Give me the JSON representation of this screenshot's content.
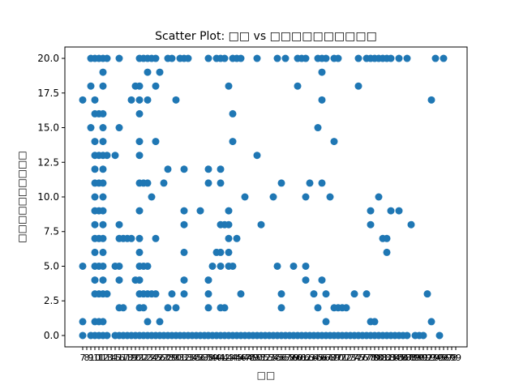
{
  "chart_data": {
    "type": "scatter",
    "title": "Scatter Plot: □□ vs □□□□□□□□□□",
    "xlabel": "□□",
    "ylabel": "□□□□□□□□□□",
    "ylim": [
      -0.82,
      20.82
    ],
    "yticks": [
      0,
      2.5,
      5,
      7.5,
      10,
      12.5,
      15,
      17.5,
      20
    ],
    "ytick_labels": [
      "0.0",
      "2.5",
      "5.0",
      "7.5",
      "10.0",
      "12.5",
      "15.0",
      "17.5",
      "20.0"
    ],
    "x_categories": [
      "7",
      "8",
      "9",
      "10",
      "11",
      "12",
      "13",
      "14",
      "15",
      "16",
      "17",
      "18",
      "19",
      "20",
      "21",
      "22",
      "23",
      "24",
      "25",
      "26",
      "27",
      "28",
      "29",
      "30",
      "31",
      "32",
      "33",
      "34",
      "35",
      "36",
      "37",
      "38",
      "39",
      "40",
      "41",
      "42",
      "43",
      "44",
      "45",
      "46",
      "47",
      "48",
      "49",
      "50",
      "51",
      "52",
      "53",
      "54",
      "55",
      "56",
      "57",
      "58",
      "59",
      "60",
      "61",
      "62",
      "63",
      "64",
      "65",
      "66",
      "67",
      "68",
      "69",
      "70",
      "71",
      "72",
      "73",
      "74",
      "75",
      "76",
      "77",
      "78",
      "79",
      "80",
      "81",
      "82",
      "83",
      "84",
      "85",
      "86",
      "87",
      "88",
      "89",
      "90",
      "91",
      "92",
      "93",
      "94",
      "95",
      "96",
      "97",
      "98",
      "99",
      "100",
      "101",
      "102",
      "103",
      "104",
      "105",
      "106",
      "107",
      "108",
      "109",
      "110",
      "111",
      "112",
      "113",
      "114",
      "115",
      "116",
      "117",
      "118",
      "119",
      "120",
      "121",
      "122",
      "123",
      "124",
      "125",
      "126",
      "127",
      "128",
      "129",
      "130",
      "131",
      "132",
      "133",
      "134",
      "135",
      "136",
      "137",
      "138",
      "139",
      "140",
      "141",
      "142",
      "143",
      "144",
      "145",
      "146",
      "147",
      "148",
      "149",
      "150",
      "151",
      "152",
      "153",
      "154",
      "155",
      "156",
      "157",
      "158",
      "159",
      "160",
      "161",
      "162",
      "163",
      "164",
      "165",
      "166",
      "167",
      "168",
      "169",
      "170",
      "171",
      "172",
      "173",
      "174",
      "175",
      "176",
      "177",
      "178",
      "179",
      "180",
      "181",
      "182",
      "183",
      "184",
      "185",
      "186",
      "187",
      "188",
      "189",
      "190",
      "191",
      "192",
      "193",
      "194",
      "195",
      "196",
      "197",
      "198",
      "199",
      "200",
      "201",
      "202",
      "203",
      "204",
      "205",
      "206",
      "207",
      "208",
      "209",
      "210",
      "211",
      "212",
      "213",
      "214",
      "215",
      "216",
      "217",
      "218",
      "219",
      "220",
      "221",
      "222",
      "223",
      "224",
      "225"
    ],
    "points": [
      [
        0,
        17
      ],
      [
        0,
        5
      ],
      [
        0,
        1
      ],
      [
        0,
        0
      ],
      [
        2,
        20
      ],
      [
        2,
        18
      ],
      [
        2,
        15
      ],
      [
        2,
        0
      ],
      [
        3,
        20
      ],
      [
        3,
        17
      ],
      [
        3,
        16
      ],
      [
        3,
        14
      ],
      [
        3,
        13
      ],
      [
        3,
        12
      ],
      [
        3,
        11
      ],
      [
        3,
        10
      ],
      [
        3,
        9
      ],
      [
        3,
        8
      ],
      [
        3,
        7
      ],
      [
        3,
        6
      ],
      [
        3,
        5
      ],
      [
        3,
        4
      ],
      [
        3,
        3
      ],
      [
        3,
        1
      ],
      [
        3,
        0
      ],
      [
        4,
        20
      ],
      [
        4,
        16
      ],
      [
        4,
        13
      ],
      [
        4,
        11
      ],
      [
        4,
        9
      ],
      [
        4,
        7
      ],
      [
        4,
        5
      ],
      [
        4,
        3
      ],
      [
        4,
        1
      ],
      [
        4,
        0
      ],
      [
        5,
        20
      ],
      [
        5,
        19
      ],
      [
        5,
        18
      ],
      [
        5,
        16
      ],
      [
        5,
        15
      ],
      [
        5,
        14
      ],
      [
        5,
        13
      ],
      [
        5,
        12
      ],
      [
        5,
        11
      ],
      [
        5,
        10
      ],
      [
        5,
        9
      ],
      [
        5,
        8
      ],
      [
        5,
        7
      ],
      [
        5,
        6
      ],
      [
        5,
        5
      ],
      [
        5,
        4
      ],
      [
        5,
        3
      ],
      [
        5,
        1
      ],
      [
        5,
        0
      ],
      [
        6,
        20
      ],
      [
        6,
        13
      ],
      [
        6,
        3
      ],
      [
        6,
        0
      ],
      [
        8,
        13
      ],
      [
        8,
        5
      ],
      [
        8,
        0
      ],
      [
        9,
        20
      ],
      [
        9,
        15
      ],
      [
        9,
        8
      ],
      [
        9,
        7
      ],
      [
        9,
        5
      ],
      [
        9,
        4
      ],
      [
        9,
        2
      ],
      [
        9,
        0
      ],
      [
        10,
        7
      ],
      [
        10,
        2
      ],
      [
        10,
        0
      ],
      [
        11,
        7
      ],
      [
        11,
        0
      ],
      [
        12,
        17
      ],
      [
        12,
        7
      ],
      [
        12,
        0
      ],
      [
        13,
        18
      ],
      [
        13,
        4
      ],
      [
        13,
        0
      ],
      [
        14,
        20
      ],
      [
        14,
        18
      ],
      [
        14,
        17
      ],
      [
        14,
        16
      ],
      [
        14,
        14
      ],
      [
        14,
        13
      ],
      [
        14,
        11
      ],
      [
        14,
        9
      ],
      [
        14,
        7
      ],
      [
        14,
        6
      ],
      [
        14,
        5
      ],
      [
        14,
        4
      ],
      [
        14,
        3
      ],
      [
        14,
        2
      ],
      [
        14,
        0
      ],
      [
        15,
        20
      ],
      [
        15,
        11
      ],
      [
        15,
        5
      ],
      [
        15,
        3
      ],
      [
        15,
        2
      ],
      [
        15,
        0
      ],
      [
        16,
        20
      ],
      [
        16,
        19
      ],
      [
        16,
        17
      ],
      [
        16,
        11
      ],
      [
        16,
        5
      ],
      [
        16,
        3
      ],
      [
        16,
        1
      ],
      [
        16,
        0
      ],
      [
        17,
        20
      ],
      [
        17,
        10
      ],
      [
        17,
        3
      ],
      [
        17,
        0
      ],
      [
        18,
        20
      ],
      [
        18,
        18
      ],
      [
        18,
        14
      ],
      [
        18,
        7
      ],
      [
        18,
        3
      ],
      [
        18,
        0
      ],
      [
        19,
        19
      ],
      [
        19,
        1
      ],
      [
        19,
        0
      ],
      [
        20,
        11
      ],
      [
        20,
        0
      ],
      [
        21,
        20
      ],
      [
        21,
        12
      ],
      [
        21,
        2
      ],
      [
        21,
        0
      ],
      [
        22,
        20
      ],
      [
        22,
        3
      ],
      [
        22,
        0
      ],
      [
        23,
        17
      ],
      [
        23,
        2
      ],
      [
        23,
        0
      ],
      [
        24,
        20
      ],
      [
        24,
        0
      ],
      [
        25,
        20
      ],
      [
        25,
        12
      ],
      [
        25,
        9
      ],
      [
        25,
        8
      ],
      [
        25,
        6
      ],
      [
        25,
        4
      ],
      [
        25,
        3
      ],
      [
        25,
        0
      ],
      [
        26,
        20
      ],
      [
        26,
        0
      ],
      [
        27,
        0
      ],
      [
        28,
        0
      ],
      [
        29,
        9
      ],
      [
        29,
        0
      ],
      [
        30,
        0
      ],
      [
        31,
        20
      ],
      [
        31,
        12
      ],
      [
        31,
        11
      ],
      [
        31,
        4
      ],
      [
        31,
        3
      ],
      [
        31,
        2
      ],
      [
        31,
        0
      ],
      [
        32,
        5
      ],
      [
        32,
        0
      ],
      [
        33,
        20
      ],
      [
        33,
        6
      ],
      [
        33,
        0
      ],
      [
        34,
        20
      ],
      [
        34,
        12
      ],
      [
        34,
        11
      ],
      [
        34,
        8
      ],
      [
        34,
        6
      ],
      [
        34,
        5
      ],
      [
        34,
        2
      ],
      [
        34,
        0
      ],
      [
        35,
        20
      ],
      [
        35,
        8
      ],
      [
        35,
        2
      ],
      [
        35,
        0
      ],
      [
        36,
        18
      ],
      [
        36,
        9
      ],
      [
        36,
        8
      ],
      [
        36,
        7
      ],
      [
        36,
        6
      ],
      [
        36,
        5
      ],
      [
        36,
        0
      ],
      [
        37,
        20
      ],
      [
        37,
        16
      ],
      [
        37,
        14
      ],
      [
        37,
        5
      ],
      [
        37,
        0
      ],
      [
        38,
        20
      ],
      [
        38,
        7
      ],
      [
        38,
        0
      ],
      [
        39,
        20
      ],
      [
        39,
        3
      ],
      [
        39,
        0
      ],
      [
        40,
        10
      ],
      [
        40,
        0
      ],
      [
        41,
        0
      ],
      [
        42,
        0
      ],
      [
        43,
        20
      ],
      [
        43,
        13
      ],
      [
        43,
        0
      ],
      [
        44,
        8
      ],
      [
        44,
        0
      ],
      [
        45,
        0
      ],
      [
        46,
        0
      ],
      [
        47,
        10
      ],
      [
        47,
        0
      ],
      [
        48,
        20
      ],
      [
        48,
        5
      ],
      [
        48,
        0
      ],
      [
        49,
        11
      ],
      [
        49,
        3
      ],
      [
        49,
        2
      ],
      [
        49,
        0
      ],
      [
        50,
        20
      ],
      [
        50,
        0
      ],
      [
        51,
        0
      ],
      [
        52,
        5
      ],
      [
        52,
        0
      ],
      [
        53,
        20
      ],
      [
        53,
        18
      ],
      [
        53,
        0
      ],
      [
        54,
        20
      ],
      [
        54,
        0
      ],
      [
        55,
        20
      ],
      [
        55,
        10
      ],
      [
        55,
        5
      ],
      [
        55,
        4
      ],
      [
        55,
        0
      ],
      [
        56,
        11
      ],
      [
        56,
        0
      ],
      [
        57,
        3
      ],
      [
        57,
        0
      ],
      [
        58,
        20
      ],
      [
        58,
        15
      ],
      [
        58,
        2
      ],
      [
        58,
        0
      ],
      [
        59,
        20
      ],
      [
        59,
        19
      ],
      [
        59,
        17
      ],
      [
        59,
        11
      ],
      [
        59,
        4
      ],
      [
        59,
        0
      ],
      [
        60,
        20
      ],
      [
        60,
        3
      ],
      [
        60,
        1
      ],
      [
        60,
        0
      ],
      [
        61,
        10
      ],
      [
        61,
        0
      ],
      [
        62,
        20
      ],
      [
        62,
        14
      ],
      [
        62,
        2
      ],
      [
        62,
        0
      ],
      [
        63,
        20
      ],
      [
        63,
        2
      ],
      [
        63,
        0
      ],
      [
        64,
        2
      ],
      [
        64,
        0
      ],
      [
        65,
        2
      ],
      [
        65,
        0
      ],
      [
        66,
        0
      ],
      [
        67,
        3
      ],
      [
        67,
        0
      ],
      [
        68,
        20
      ],
      [
        68,
        18
      ],
      [
        68,
        0
      ],
      [
        69,
        0
      ],
      [
        70,
        20
      ],
      [
        70,
        3
      ],
      [
        70,
        0
      ],
      [
        71,
        20
      ],
      [
        71,
        9
      ],
      [
        71,
        8
      ],
      [
        71,
        1
      ],
      [
        71,
        0
      ],
      [
        72,
        20
      ],
      [
        72,
        1
      ],
      [
        72,
        0
      ],
      [
        73,
        20
      ],
      [
        73,
        10
      ],
      [
        73,
        0
      ],
      [
        74,
        20
      ],
      [
        74,
        7
      ],
      [
        74,
        0
      ],
      [
        75,
        20
      ],
      [
        75,
        7
      ],
      [
        75,
        6
      ],
      [
        75,
        0
      ],
      [
        76,
        20
      ],
      [
        76,
        9
      ],
      [
        76,
        0
      ],
      [
        77,
        0
      ],
      [
        78,
        20
      ],
      [
        78,
        9
      ],
      [
        78,
        0
      ],
      [
        79,
        0
      ],
      [
        80,
        20
      ],
      [
        80,
        0
      ],
      [
        81,
        8
      ],
      [
        82,
        0
      ],
      [
        83,
        0
      ],
      [
        84,
        0
      ],
      [
        85,
        3
      ],
      [
        86,
        17
      ],
      [
        86,
        1
      ],
      [
        87,
        20
      ],
      [
        88,
        0
      ],
      [
        89,
        20
      ]
    ]
  }
}
